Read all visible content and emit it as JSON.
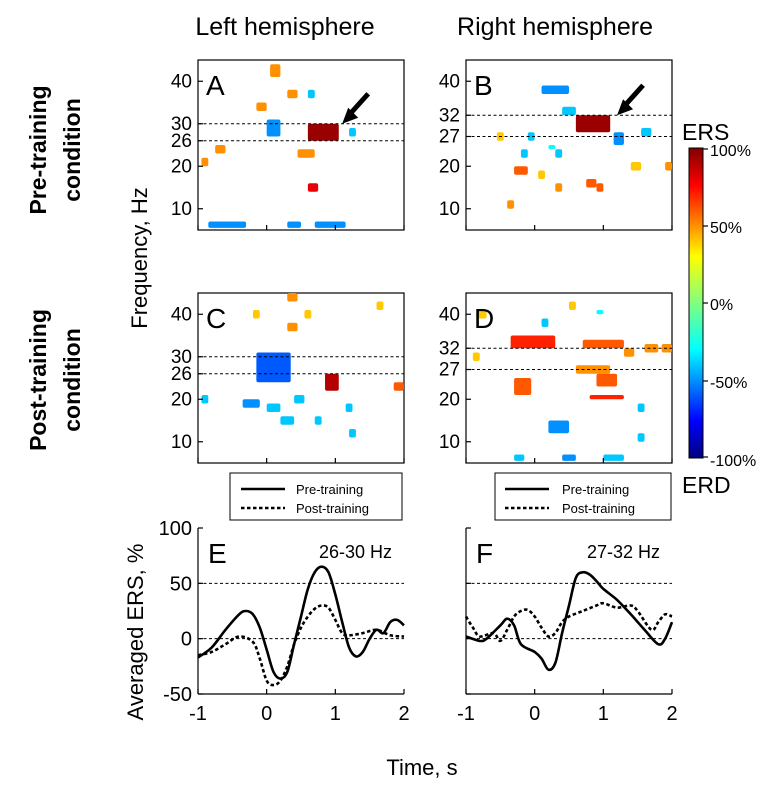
{
  "column_titles": [
    "Left hemisphere",
    "Right hemisphere"
  ],
  "row_titles": [
    {
      "line1": "Pre-training",
      "line2": "condition"
    },
    {
      "line1": "Post-training",
      "line2": "condition"
    }
  ],
  "heatmap_ylabel": "Frequency, Hz",
  "colorbar": {
    "ticks": [
      "100%",
      "50%",
      "0%",
      "-50%",
      "-100%"
    ],
    "top_label": "ERS",
    "bottom_label": "ERD"
  },
  "legend": {
    "pre": "Pre-training",
    "post": "Post-training"
  },
  "line_ylabel": "Averaged ERS, %",
  "xlabel": "Time, s",
  "colors": {
    "ers": "#d83010",
    "erd": "#30b0f0",
    "colorbar_top": "#7f0000",
    "colorbar_bottom": "#00007f"
  },
  "chart_data": [
    {
      "type": "heatmap",
      "panel": "A",
      "title": "Left hemisphere",
      "ylabel": "Frequency, Hz",
      "xlim": [
        -1,
        2
      ],
      "ylim": [
        5,
        45
      ],
      "yticks": [
        "10",
        "20",
        "26",
        "30",
        "40"
      ],
      "band_lines": [
        26,
        30
      ],
      "arrow_at": [
        1.1,
        30
      ],
      "ers_patches": [
        [
          0.6,
          1.05,
          26,
          30,
          0.95
        ],
        [
          0.05,
          0.2,
          41,
          44,
          0.5
        ],
        [
          0.3,
          0.45,
          36,
          38,
          0.5
        ],
        [
          -0.15,
          0.0,
          33,
          35,
          0.5
        ],
        [
          0.45,
          0.7,
          22,
          24,
          0.5
        ],
        [
          0.6,
          0.75,
          14,
          16,
          0.8
        ],
        [
          -0.75,
          -0.6,
          23,
          25,
          0.5
        ],
        [
          -0.95,
          -0.85,
          20,
          22,
          0.5
        ]
      ],
      "erd_patches": [
        [
          0.0,
          0.2,
          27,
          31,
          -0.5
        ],
        [
          0.6,
          0.7,
          36,
          38,
          -0.4
        ],
        [
          -0.85,
          -0.3,
          5.5,
          7,
          -0.5
        ],
        [
          0.3,
          0.5,
          5.5,
          7,
          -0.5
        ],
        [
          0.7,
          1.15,
          5.5,
          7,
          -0.5
        ],
        [
          1.2,
          1.3,
          27,
          29,
          -0.4
        ]
      ]
    },
    {
      "type": "heatmap",
      "panel": "B",
      "title": "Right hemisphere",
      "ylabel": "Frequency, Hz",
      "xlim": [
        -1,
        2
      ],
      "ylim": [
        5,
        45
      ],
      "yticks": [
        "10",
        "20",
        "27",
        "32",
        "40"
      ],
      "band_lines": [
        27,
        32
      ],
      "arrow_at": [
        1.2,
        32
      ],
      "ers_patches": [
        [
          0.6,
          1.1,
          28,
          32,
          0.95
        ],
        [
          -0.3,
          -0.1,
          18,
          20,
          0.6
        ],
        [
          -0.4,
          -0.3,
          10,
          12,
          0.5
        ],
        [
          0.3,
          0.4,
          14,
          16,
          0.5
        ],
        [
          0.05,
          0.15,
          17,
          19,
          0.4
        ],
        [
          0.75,
          0.9,
          15,
          17,
          0.6
        ],
        [
          0.9,
          1.0,
          14,
          16,
          0.6
        ],
        [
          1.9,
          2.0,
          19,
          21,
          0.5
        ],
        [
          -0.55,
          -0.45,
          26,
          28,
          0.4
        ],
        [
          1.4,
          1.55,
          19,
          21,
          0.4
        ]
      ],
      "erd_patches": [
        [
          0.1,
          0.5,
          37,
          39,
          -0.5
        ],
        [
          0.4,
          0.6,
          32,
          34,
          -0.4
        ],
        [
          -0.1,
          0.0,
          26,
          28,
          -0.4
        ],
        [
          1.15,
          1.3,
          25,
          28,
          -0.5
        ],
        [
          1.55,
          1.7,
          27,
          29,
          -0.4
        ],
        [
          -0.2,
          -0.1,
          22,
          24,
          -0.4
        ],
        [
          0.3,
          0.4,
          22,
          24,
          -0.4
        ],
        [
          0.2,
          0.3,
          24,
          25,
          -0.3
        ]
      ]
    },
    {
      "type": "heatmap",
      "panel": "C",
      "title": "Left hemisphere",
      "ylabel": "Frequency, Hz",
      "xlim": [
        -1,
        2
      ],
      "ylim": [
        5,
        45
      ],
      "yticks": [
        "10",
        "20",
        "26",
        "30",
        "40"
      ],
      "band_lines": [
        26,
        30
      ],
      "ers_patches": [
        [
          0.3,
          0.45,
          43,
          45,
          0.5
        ],
        [
          0.55,
          0.65,
          39,
          41,
          0.4
        ],
        [
          0.3,
          0.45,
          36,
          38,
          0.5
        ],
        [
          0.85,
          1.05,
          22,
          26,
          0.9
        ],
        [
          1.85,
          2.0,
          22,
          24,
          0.6
        ],
        [
          1.6,
          1.7,
          41,
          43,
          0.4
        ],
        [
          -0.2,
          -0.1,
          39,
          41,
          0.4
        ]
      ],
      "erd_patches": [
        [
          -0.15,
          0.35,
          24,
          31,
          -0.6
        ],
        [
          -0.35,
          -0.1,
          18,
          20,
          -0.5
        ],
        [
          0.0,
          0.2,
          17,
          19,
          -0.4
        ],
        [
          0.4,
          0.55,
          19,
          21,
          -0.4
        ],
        [
          0.2,
          0.4,
          14,
          16,
          -0.4
        ],
        [
          0.7,
          0.8,
          14,
          16,
          -0.4
        ],
        [
          1.15,
          1.25,
          17,
          19,
          -0.4
        ],
        [
          1.2,
          1.3,
          11,
          13,
          -0.4
        ],
        [
          -0.95,
          -0.85,
          19,
          21,
          -0.4
        ]
      ]
    },
    {
      "type": "heatmap",
      "panel": "D",
      "title": "Right hemisphere",
      "ylabel": "Frequency, Hz",
      "xlim": [
        -1,
        2
      ],
      "ylim": [
        5,
        45
      ],
      "yticks": [
        "10",
        "20",
        "27",
        "32",
        "40"
      ],
      "band_lines": [
        27,
        32
      ],
      "ers_patches": [
        [
          -0.35,
          0.3,
          32,
          35,
          0.7
        ],
        [
          0.7,
          1.3,
          32,
          34,
          0.6
        ],
        [
          1.3,
          1.45,
          30,
          32,
          0.5
        ],
        [
          -0.3,
          -0.05,
          21,
          25,
          0.6
        ],
        [
          0.6,
          1.1,
          26,
          28,
          0.5
        ],
        [
          0.9,
          1.2,
          23,
          26,
          0.6
        ],
        [
          0.8,
          1.3,
          20,
          21,
          0.7
        ],
        [
          1.6,
          1.8,
          31,
          33,
          0.5
        ],
        [
          1.85,
          2.0,
          31,
          33,
          0.5
        ],
        [
          -0.85,
          -0.7,
          39,
          41,
          0.4
        ],
        [
          -0.9,
          -0.8,
          29,
          31,
          0.4
        ],
        [
          0.5,
          0.6,
          41,
          43,
          0.4
        ]
      ],
      "erd_patches": [
        [
          0.2,
          0.5,
          12,
          15,
          -0.5
        ],
        [
          0.4,
          0.6,
          5.5,
          7,
          -0.5
        ],
        [
          1.0,
          1.3,
          5.5,
          7,
          -0.4
        ],
        [
          1.5,
          1.6,
          10,
          12,
          -0.4
        ],
        [
          1.5,
          1.6,
          17,
          19,
          -0.4
        ],
        [
          -0.3,
          -0.15,
          5.5,
          7,
          -0.4
        ],
        [
          0.1,
          0.2,
          37,
          39,
          -0.4
        ],
        [
          0.9,
          1.0,
          40,
          41,
          -0.3
        ]
      ]
    },
    {
      "type": "line",
      "panel": "E",
      "title": "26-30 Hz",
      "xlabel": "Time, s",
      "ylabel": "Averaged ERS, %",
      "xlim": [
        -1,
        2
      ],
      "ylim": [
        -50,
        100
      ],
      "xticks": [
        "-1",
        "0",
        "1",
        "2"
      ],
      "yticks": [
        "-50",
        "0",
        "50",
        "100"
      ],
      "ref_lines": [
        0,
        50
      ],
      "series": [
        {
          "name": "Pre-training",
          "style": "solid",
          "points": [
            [
              -1,
              -17
            ],
            [
              -0.8,
              -8
            ],
            [
              -0.6,
              8
            ],
            [
              -0.4,
              22
            ],
            [
              -0.3,
              25
            ],
            [
              -0.2,
              22
            ],
            [
              -0.1,
              10
            ],
            [
              0,
              -10
            ],
            [
              0.1,
              -30
            ],
            [
              0.2,
              -36
            ],
            [
              0.3,
              -30
            ],
            [
              0.4,
              -5
            ],
            [
              0.5,
              20
            ],
            [
              0.6,
              45
            ],
            [
              0.7,
              60
            ],
            [
              0.8,
              65
            ],
            [
              0.9,
              60
            ],
            [
              1.0,
              40
            ],
            [
              1.1,
              15
            ],
            [
              1.2,
              -8
            ],
            [
              1.3,
              -16
            ],
            [
              1.4,
              -12
            ],
            [
              1.5,
              0
            ],
            [
              1.6,
              8
            ],
            [
              1.7,
              5
            ],
            [
              1.8,
              15
            ],
            [
              1.9,
              17
            ],
            [
              2.0,
              12
            ]
          ]
        },
        {
          "name": "Post-training",
          "style": "dotted",
          "points": [
            [
              -1,
              -15
            ],
            [
              -0.8,
              -12
            ],
            [
              -0.6,
              -5
            ],
            [
              -0.4,
              2
            ],
            [
              -0.2,
              -3
            ],
            [
              -0.1,
              -18
            ],
            [
              0,
              -38
            ],
            [
              0.1,
              -42
            ],
            [
              0.2,
              -38
            ],
            [
              0.3,
              -25
            ],
            [
              0.4,
              -5
            ],
            [
              0.5,
              10
            ],
            [
              0.6,
              20
            ],
            [
              0.7,
              27
            ],
            [
              0.8,
              30
            ],
            [
              0.9,
              28
            ],
            [
              1.0,
              17
            ],
            [
              1.1,
              5
            ],
            [
              1.2,
              3
            ],
            [
              1.4,
              5
            ],
            [
              1.6,
              8
            ],
            [
              1.8,
              3
            ],
            [
              2.0,
              2
            ]
          ]
        }
      ]
    },
    {
      "type": "line",
      "panel": "F",
      "title": "27-32 Hz",
      "xlabel": "Time, s",
      "ylabel": "Averaged ERS, %",
      "xlim": [
        -1,
        2
      ],
      "ylim": [
        -50,
        100
      ],
      "xticks": [
        "-1",
        "0",
        "1",
        "2"
      ],
      "yticks": [
        "-50",
        "0",
        "50",
        "100"
      ],
      "ref_lines": [
        0,
        50
      ],
      "series": [
        {
          "name": "Pre-training",
          "style": "solid",
          "points": [
            [
              -1,
              2
            ],
            [
              -0.8,
              -2
            ],
            [
              -0.7,
              0
            ],
            [
              -0.5,
              12
            ],
            [
              -0.4,
              18
            ],
            [
              -0.3,
              12
            ],
            [
              -0.2,
              -5
            ],
            [
              0,
              -12
            ],
            [
              0.1,
              -18
            ],
            [
              0.2,
              -28
            ],
            [
              0.3,
              -22
            ],
            [
              0.4,
              5
            ],
            [
              0.5,
              30
            ],
            [
              0.6,
              55
            ],
            [
              0.7,
              60
            ],
            [
              0.8,
              58
            ],
            [
              0.9,
              52
            ],
            [
              1.0,
              45
            ],
            [
              1.2,
              35
            ],
            [
              1.4,
              22
            ],
            [
              1.6,
              8
            ],
            [
              1.8,
              -5
            ],
            [
              1.9,
              0
            ],
            [
              2.0,
              15
            ]
          ]
        },
        {
          "name": "Post-training",
          "style": "dotted",
          "points": [
            [
              -1,
              20
            ],
            [
              -0.9,
              10
            ],
            [
              -0.8,
              2
            ],
            [
              -0.6,
              5
            ],
            [
              -0.5,
              -2
            ],
            [
              -0.4,
              8
            ],
            [
              -0.3,
              20
            ],
            [
              -0.2,
              25
            ],
            [
              -0.1,
              26
            ],
            [
              0,
              20
            ],
            [
              0.1,
              10
            ],
            [
              0.2,
              2
            ],
            [
              0.3,
              5
            ],
            [
              0.4,
              15
            ],
            [
              0.5,
              20
            ],
            [
              0.7,
              25
            ],
            [
              0.9,
              30
            ],
            [
              1.0,
              32
            ],
            [
              1.2,
              28
            ],
            [
              1.4,
              30
            ],
            [
              1.5,
              25
            ],
            [
              1.7,
              8
            ],
            [
              1.8,
              15
            ],
            [
              1.9,
              22
            ],
            [
              2.0,
              20
            ]
          ]
        }
      ]
    }
  ]
}
